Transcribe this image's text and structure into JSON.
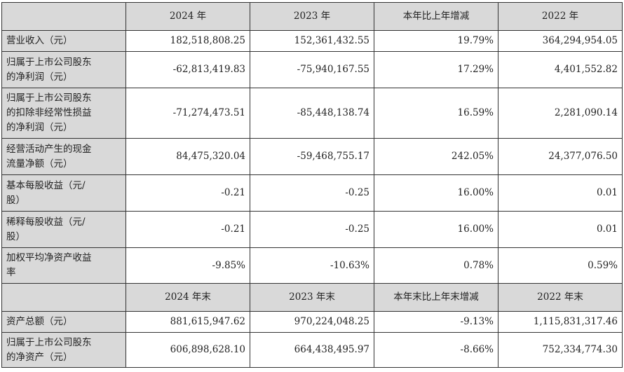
{
  "header_years": [
    "2024 年",
    "2023 年",
    "本年比上年增减",
    "2022 年"
  ],
  "rows": [
    {
      "label": [
        "营业收入（元）"
      ],
      "v": [
        "182,518,808.25",
        "152,361,432.55",
        "19.79%",
        "364,294,954.05"
      ]
    },
    {
      "label": [
        "归属于上市公司股东",
        "的净利润（元）"
      ],
      "v": [
        "-62,813,419.83",
        "-75,940,167.55",
        "17.29%",
        "4,401,552.82"
      ]
    },
    {
      "label": [
        "归属于上市公司股东",
        "的扣除非经常性损益",
        "的净利润（元）"
      ],
      "v": [
        "-71,274,473.51",
        "-85,448,138.74",
        "16.59%",
        "2,281,090.14"
      ]
    },
    {
      "label": [
        "经营活动产生的现金",
        "流量净额（元）"
      ],
      "v": [
        "84,475,320.04",
        "-59,468,755.17",
        "242.05%",
        "24,377,076.50"
      ]
    },
    {
      "label": [
        "基本每股收益（元/",
        "股）"
      ],
      "v": [
        "-0.21",
        "-0.25",
        "16.00%",
        "0.01"
      ]
    },
    {
      "label": [
        "稀释每股收益（元/",
        "股）"
      ],
      "v": [
        "-0.21",
        "-0.25",
        "16.00%",
        "0.01"
      ]
    },
    {
      "label": [
        "加权平均净资产收益",
        "率"
      ],
      "v": [
        "-9.85%",
        "-10.63%",
        "0.78%",
        "0.59%"
      ]
    }
  ],
  "header_year_end": [
    "2024 年末",
    "2023 年末",
    "本年末比上年末增减",
    "2022 年末"
  ],
  "rows_end": [
    {
      "label": [
        "资产总额（元）"
      ],
      "v": [
        "881,615,947.62",
        "970,224,048.25",
        "-9.13%",
        "1,115,831,317.46"
      ]
    },
    {
      "label": [
        "归属于上市公司股东",
        "的净资产（元）"
      ],
      "v": [
        "606,898,628.10",
        "664,438,495.97",
        "-8.66%",
        "752,334,774.30"
      ]
    }
  ]
}
